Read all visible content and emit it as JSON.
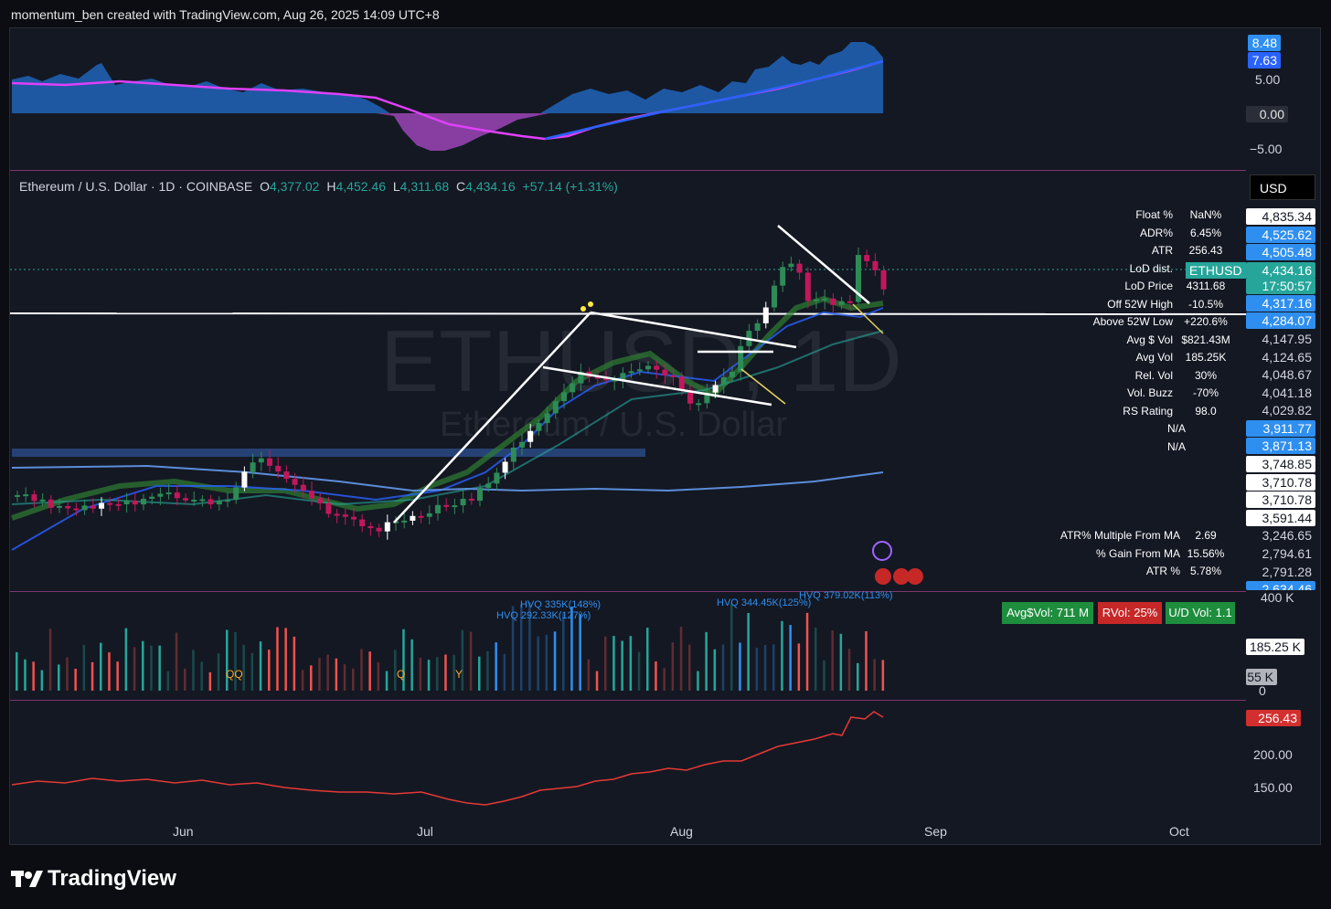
{
  "header": {
    "credit": "momentum_ben created with TradingView.com, Aug 26, 2025 14:09 UTC+8"
  },
  "footer": {
    "logo_text": "TradingView"
  },
  "legend": {
    "symbol": "Ethereum / U.S. Dollar · 1D · COINBASE",
    "o_label": "O",
    "o_value": "4,377.02",
    "h_label": "H",
    "h_value": "4,452.46",
    "l_label": "L",
    "l_value": "4,311.68",
    "c_label": "C",
    "c_value": "4,434.16",
    "change": "+57.14 (+1.31%)"
  },
  "watermark": {
    "main": "ETHUSD, 1D",
    "sub": "Ethereum / U.S. Dollar"
  },
  "currency": "USD",
  "indicator_axis": {
    "badge1": "8.48",
    "badge2": "7.63",
    "t1": "5.00",
    "t2": "0.00",
    "t3": "−5.00"
  },
  "price_axis": {
    "ticks": [
      "4,835.34",
      "4,525.62",
      "4,505.48",
      "4,434.16",
      "17:50:57",
      "4,317.16",
      "4,284.07",
      "4,147.95",
      "4,124.65",
      "4,048.67",
      "4,041.18",
      "4,029.82",
      "3,911.77",
      "3,871.13",
      "3,748.85",
      "3,710.78",
      "3,710.78",
      "3,591.44",
      "3,246.65",
      "2,794.61",
      "2,791.28",
      "2,634.46"
    ],
    "tag": "ETHUSD"
  },
  "stats": {
    "labels": [
      "Float %",
      "ADR%",
      "ATR",
      "LoD dist.",
      "LoD Price",
      "Off 52W High",
      "Above 52W Low",
      "Avg $ Vol",
      "Avg Vol",
      "Rel. Vol",
      "Vol. Buzz",
      "RS Rating",
      "N/A",
      "N/A"
    ],
    "values": [
      "NaN%",
      "6.45%",
      "256.43",
      "",
      "4311.68",
      "-10.5%",
      "+220.6%",
      "$821.43M",
      "185.25K",
      "30%",
      "-70%",
      "98.0",
      "",
      ""
    ],
    "lower_labels": [
      "ATR% Multiple From MA",
      "% Gain From MA",
      "ATR %"
    ],
    "lower_values": [
      "2.69",
      "15.56%",
      "5.78%"
    ]
  },
  "volume": {
    "axis_top": "400 K",
    "axis_mid": "185.25 K",
    "axis_low": "55 K",
    "axis_zero": "0",
    "badges": [
      "Avg$Vol: 711 M",
      "RVol: 25%",
      "U/D Vol: 1.1"
    ],
    "hvq": [
      "HVQ 335K(148%)",
      "HVQ 292.33K(127%)",
      "HVQ 344.45K(125%)",
      "HVQ 379.02K(113%)"
    ],
    "markers": [
      "QQ",
      "Q",
      "Y"
    ]
  },
  "atr_axis": {
    "current": "256.43",
    "t1": "200.00",
    "t2": "150.00"
  },
  "time_axis": [
    "Jun",
    "Jul",
    "Aug",
    "Sep",
    "Oct"
  ],
  "colors": {
    "up": "#26a69a",
    "down": "#ef5350",
    "bull_candle": "#2e8b57",
    "bear_candle": "#c2185b",
    "accent": "#2962ff"
  }
}
